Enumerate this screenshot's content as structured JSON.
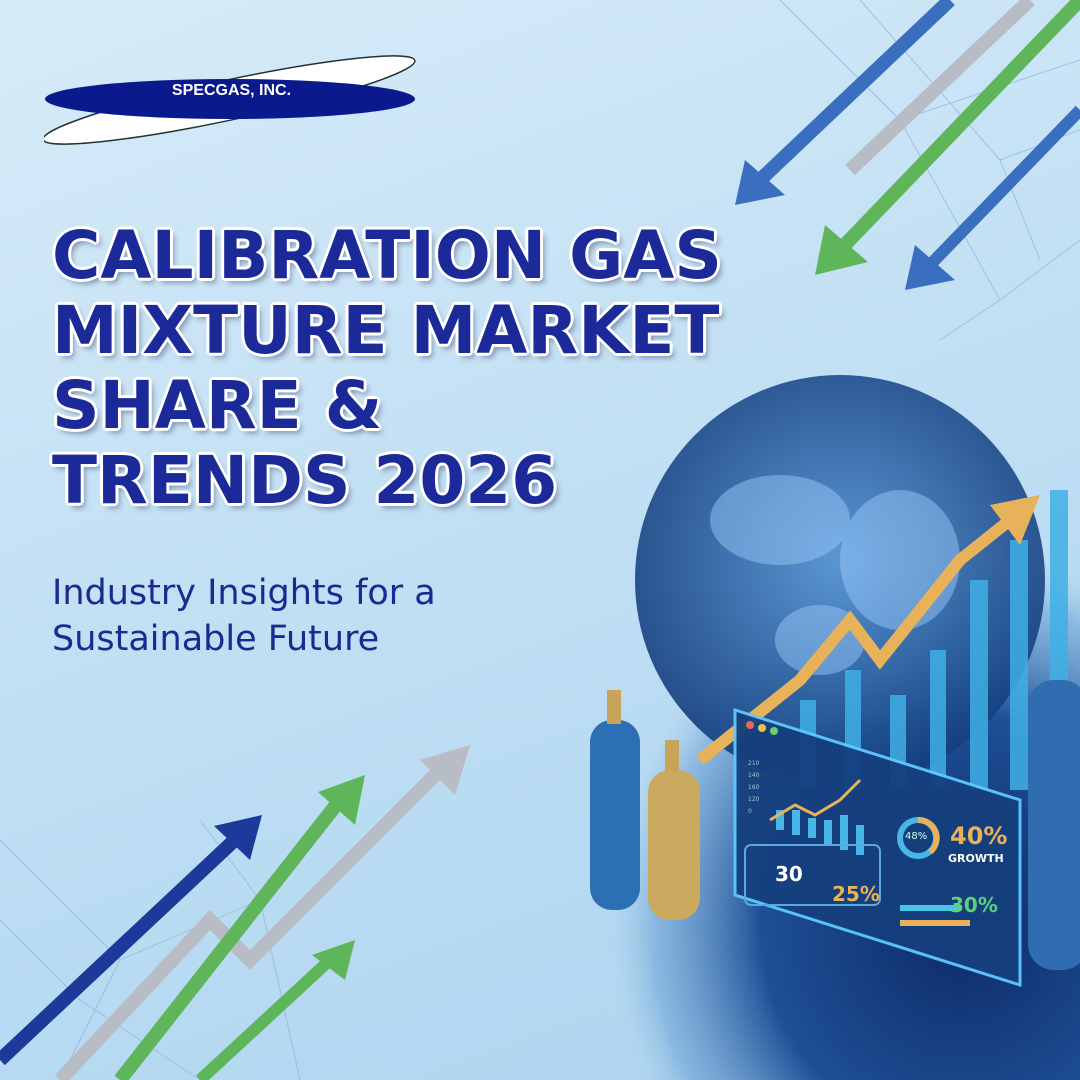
{
  "logo": {
    "text": "SPECGAS, INC.",
    "colors": {
      "ellipse": "#0a1a8c",
      "swoosh": "#ffffff"
    }
  },
  "headline": {
    "lines": [
      "CALIBRATION GAS",
      "MIXTURE MARKET",
      "SHARE &",
      "TRENDS 2026"
    ],
    "color": "#1b2a98"
  },
  "subheadline": {
    "lines": [
      "Industry Insights for a",
      "Sustainable Future"
    ]
  },
  "illustration": {
    "donut_label": "48%",
    "growth_value": "40%",
    "growth_label": "GROWTH",
    "stat_30": "30",
    "stat_25": "25%",
    "stat_30pct": "30%",
    "small_gauge": "F5%",
    "axis_ticks": [
      "210",
      "140",
      "160",
      "120",
      "0"
    ]
  },
  "colors": {
    "background": "#c2e0f4",
    "arrow_blue": "#3a6fc0",
    "arrow_green": "#5fb55a",
    "arrow_gray": "#b8bcc4",
    "arrow_navy": "#1c3a9a"
  }
}
